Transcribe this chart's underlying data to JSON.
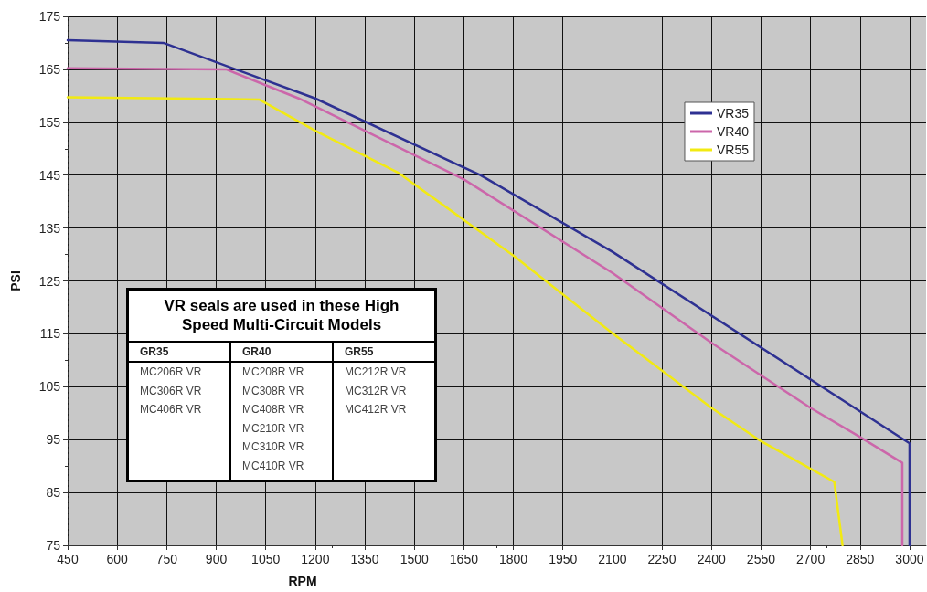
{
  "chart_data": {
    "type": "line",
    "xlabel": "RPM",
    "ylabel": "PSI",
    "xlim": [
      450,
      3050
    ],
    "xticks": [
      450,
      600,
      750,
      900,
      1050,
      1200,
      1350,
      1500,
      1650,
      1800,
      1950,
      2100,
      2250,
      2400,
      2550,
      2700,
      2850,
      3000
    ],
    "ylim": [
      75,
      175
    ],
    "yticks": [
      75,
      85,
      95,
      105,
      115,
      125,
      135,
      145,
      155,
      165,
      175
    ],
    "grid": true,
    "legend": "top right",
    "marker": "none",
    "line_style": "solid",
    "series": [
      {
        "name": "VR35",
        "color": "#2e3192",
        "x": [
          450,
          740,
          1200,
          1700,
          2100,
          3000,
          3000
        ],
        "values": [
          170.5,
          170,
          159.5,
          145,
          130.5,
          94.3,
          75
        ]
      },
      {
        "name": "VR40",
        "color": "#cc66aa",
        "x": [
          450,
          930,
          1150,
          1650,
          2100,
          2400,
          2700,
          2850,
          2978,
          2978
        ],
        "values": [
          165.2,
          165,
          159.5,
          144.2,
          126.5,
          113.3,
          101,
          95.5,
          90.6,
          75
        ]
      },
      {
        "name": "VR55",
        "color": "#f2ea12",
        "x": [
          450,
          1030,
          1200,
          1450,
          1800,
          2100,
          2400,
          2550,
          2700,
          2772,
          2797
        ],
        "values": [
          159.7,
          159.3,
          153.4,
          145.5,
          129.8,
          115.1,
          101,
          94.7,
          89.5,
          87,
          75
        ]
      }
    ],
    "annotations": [
      "VR seals are used in these High\nSpeed Multi-Circuit Models",
      "GR35\nMC206R VR\nMC306R VR\nMC406R VR",
      "GR40\nMC208R VR\nMC308R VR\nMC408R VR\nMC210R VR\nMC310R VR\nMC410R VR",
      "GR55\nMC212R VR\nMC312R VR\nMC412R VR"
    ]
  }
}
